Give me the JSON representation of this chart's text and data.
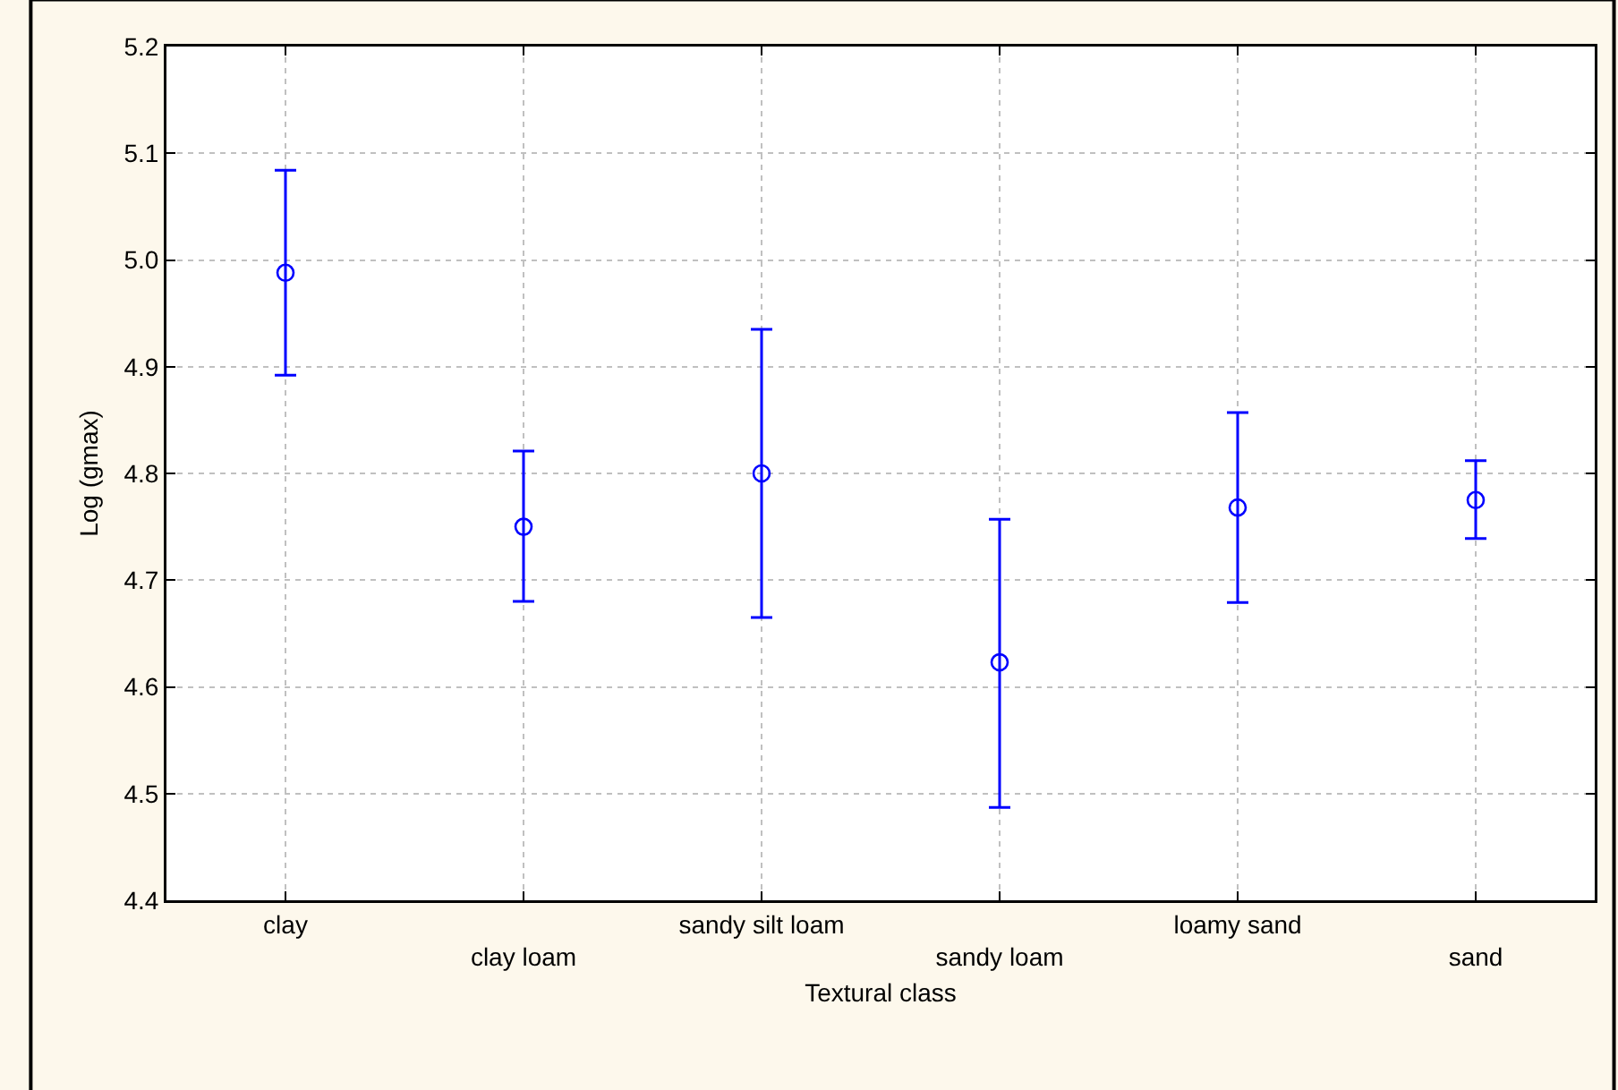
{
  "chart_data": {
    "type": "scatter",
    "xlabel": "Textural class",
    "ylabel": "Log (gmax)",
    "categories": [
      "clay",
      "clay loam",
      "sandy silt loam",
      "sandy loam",
      "loamy sand",
      "sand"
    ],
    "series": [
      {
        "color": "#0000ff",
        "values": [
          4.988,
          4.75,
          4.8,
          4.623,
          4.768,
          4.775
        ],
        "errors": [
          [
            4.892,
            5.084
          ],
          [
            4.68,
            4.821
          ],
          [
            4.665,
            4.935
          ],
          [
            4.487,
            4.757
          ],
          [
            4.679,
            4.857
          ],
          [
            4.739,
            4.812
          ]
        ]
      }
    ],
    "ylim": [
      4.4,
      5.2
    ],
    "yticks": [
      4.4,
      4.5,
      4.6,
      4.7,
      4.8,
      4.9,
      {
        "value": 5,
        "label": "5.0"
      },
      5.1,
      5.2
    ],
    "grid": true,
    "marker": "circle"
  }
}
